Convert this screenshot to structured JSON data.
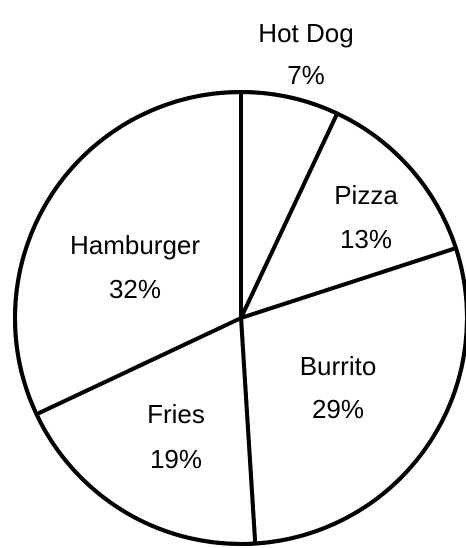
{
  "chart_data": {
    "type": "pie",
    "slices": [
      {
        "label": "Hot Dog",
        "value": 7,
        "value_label": "7%"
      },
      {
        "label": "Pizza",
        "value": 13,
        "value_label": "13%"
      },
      {
        "label": "Burrito",
        "value": 29,
        "value_label": "29%"
      },
      {
        "label": "Fries",
        "value": 19,
        "value_label": "19%"
      },
      {
        "label": "Hamburger",
        "value": 32,
        "value_label": "32%"
      }
    ],
    "start_angle_deg": 0,
    "direction": "clockwise",
    "colors": {
      "fill": "#ffffff",
      "stroke": "#000000"
    }
  }
}
